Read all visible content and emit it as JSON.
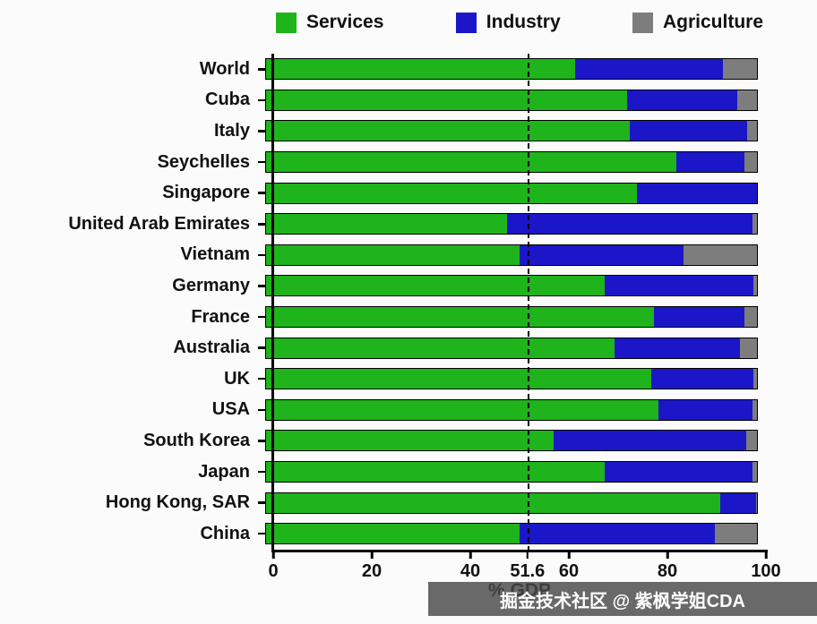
{
  "watermark": {
    "text": "掘金技术社区 @ 紫枫学姐CDA"
  },
  "chart_data": {
    "type": "bar",
    "orientation": "horizontal",
    "stacked": true,
    "title": "",
    "xlabel": "% GDP",
    "xlim": [
      0,
      100
    ],
    "x_ticks": [
      0,
      20,
      40,
      51.6,
      60,
      80,
      100
    ],
    "x_tick_labels": [
      "0",
      "20",
      "40",
      "51.6",
      "60",
      "80",
      "100"
    ],
    "reference_line_x": 51.6,
    "legend_position": "top",
    "grid": false,
    "colors": [
      "#1fb31c",
      "#1b17c9",
      "#7d7d7d"
    ],
    "categories": [
      "World",
      "Cuba",
      "Italy",
      "Seychelles",
      "Singapore",
      "United Arab Emirates",
      "Vietnam",
      "Germany",
      "France",
      "Australia",
      "UK",
      "USA",
      "South Korea",
      "Japan",
      "Hong Kong, SAR",
      "China"
    ],
    "series": [
      {
        "name": "Services",
        "values": [
          63,
          73.5,
          74,
          83.5,
          75.5,
          49,
          51.6,
          69,
          79,
          71,
          78.5,
          80,
          58.5,
          69,
          92.5,
          51.6
        ]
      },
      {
        "name": "Industry",
        "values": [
          30,
          22.5,
          24,
          14,
          24.5,
          50,
          33.4,
          30.3,
          18.5,
          25.5,
          20.8,
          19,
          39.3,
          30,
          7.4,
          39.9
        ]
      },
      {
        "name": "Agriculture",
        "values": [
          7,
          4,
          2,
          2.5,
          0,
          1,
          15,
          0.7,
          2.5,
          3.5,
          0.7,
          1,
          2.2,
          1,
          0.1,
          8.5
        ]
      }
    ]
  }
}
